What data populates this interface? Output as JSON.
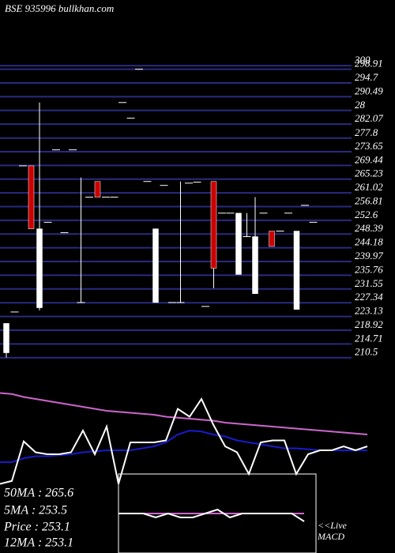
{
  "chart_data": {
    "type": "candlestick",
    "title": "BSE 935996  bullkhan.com",
    "ylim": [
      208.5,
      301
    ],
    "yticks": [
      300,
      298.91,
      294.7,
      290.49,
      {
        "value": 286.28,
        "label": "28"
      },
      282.07,
      277.8,
      273.65,
      269.44,
      265.23,
      261.02,
      256.81,
      252.6,
      248.39,
      244.18,
      239.97,
      235.76,
      231.55,
      227.34,
      223.13,
      218.92,
      214.71,
      210.5
    ],
    "up_color": "#ffffff",
    "down_color": "#cc0000",
    "grid_color": "#2a2a80",
    "open": [
      212,
      224.5,
      269.3,
      269.3,
      225.8,
      252,
      274.2,
      248.8,
      274.2,
      227.4,
      259.7,
      264.5,
      259.7,
      259.7,
      288.7,
      283.9,
      298.9,
      264.5,
      227.4,
      263.3,
      227.4,
      227.4,
      264,
      264.3,
      226.2,
      264.5,
      254.8,
      254.8,
      236,
      247.6,
      230.1,
      254.8,
      249.3,
      249.3,
      254.8,
      225.3,
      257.2,
      252
    ],
    "high": [
      221,
      224.5,
      269.3,
      269.3,
      288.7,
      252,
      274.2,
      248.8,
      274.2,
      265.7,
      259.7,
      264.5,
      259.7,
      259.7,
      288.7,
      283.9,
      298.9,
      264.5,
      250,
      263.3,
      227.4,
      264.5,
      264,
      264.3,
      226.2,
      264.5,
      254.8,
      254.8,
      254.8,
      254.8,
      259.7,
      254.8,
      249.3,
      249.3,
      254.8,
      249.3,
      257.2,
      252
    ],
    "low": [
      210.5,
      224.5,
      269.3,
      250,
      225,
      252,
      274.2,
      248.8,
      274.2,
      227.4,
      259.7,
      259.7,
      259.7,
      259.7,
      288.7,
      283.9,
      298.9,
      264.5,
      227.4,
      263.3,
      227.4,
      227.4,
      264,
      264.3,
      226.2,
      231.8,
      254.8,
      254.8,
      236,
      247.6,
      230.1,
      254.8,
      244.6,
      249.3,
      254.8,
      225.3,
      257.2,
      252
    ],
    "close": [
      221,
      224.5,
      269.3,
      250,
      250,
      252,
      274.2,
      248.8,
      274.2,
      227.4,
      259.7,
      259.7,
      259.7,
      259.7,
      288.7,
      283.9,
      298.9,
      264.5,
      250,
      263.3,
      227.4,
      227.4,
      264,
      264.3,
      226.2,
      237.9,
      254.8,
      254.8,
      254.8,
      247.6,
      247.6,
      254.8,
      244.6,
      249.3,
      254.8,
      249.3,
      257.2,
      252
    ],
    "indicator": {
      "ylim": [
        0,
        100
      ],
      "series": [
        {
          "color": "#cc66cc",
          "values": [
            94,
            93,
            90,
            88,
            86,
            84,
            82,
            80,
            78,
            76,
            75,
            74,
            73,
            72,
            70,
            69,
            68,
            67,
            66,
            64,
            63,
            62,
            61,
            60,
            59,
            58,
            57,
            56,
            55,
            54,
            53,
            52
          ]
        },
        {
          "color": "#1a1acc",
          "values": [
            24,
            24,
            28,
            30,
            30,
            31,
            32,
            34,
            35,
            36,
            36,
            36,
            38,
            40,
            44,
            52,
            56,
            55,
            52,
            50,
            46,
            44,
            42,
            40,
            38,
            38,
            37,
            36,
            36,
            36,
            36,
            36
          ]
        },
        {
          "color": "#ffffff",
          "values": [
            2,
            5,
            45,
            34,
            32,
            32,
            34,
            56,
            32,
            60,
            2,
            44,
            44,
            44,
            46,
            78,
            70,
            88,
            62,
            40,
            34,
            12,
            44,
            46,
            46,
            12,
            32,
            36,
            36,
            40,
            36,
            40
          ]
        }
      ]
    },
    "macd": {
      "ylim": [
        -10,
        10
      ],
      "series": [
        {
          "color": "#cc66cc",
          "values": [
            0,
            0,
            0,
            0,
            0,
            0,
            0,
            0,
            0,
            0,
            0,
            0,
            0,
            0,
            0,
            0
          ]
        },
        {
          "color": "#ffffff",
          "values": [
            0,
            0,
            0,
            -1,
            0,
            -1,
            -1,
            0,
            1,
            -1,
            0,
            0,
            0,
            0,
            0,
            -2
          ]
        }
      ],
      "label": "<<Live MACD"
    },
    "stats": [
      "50MA : 265.6",
      "5MA : 253.5",
      "Price   : 253.1",
      "12MA : 253.1"
    ]
  }
}
